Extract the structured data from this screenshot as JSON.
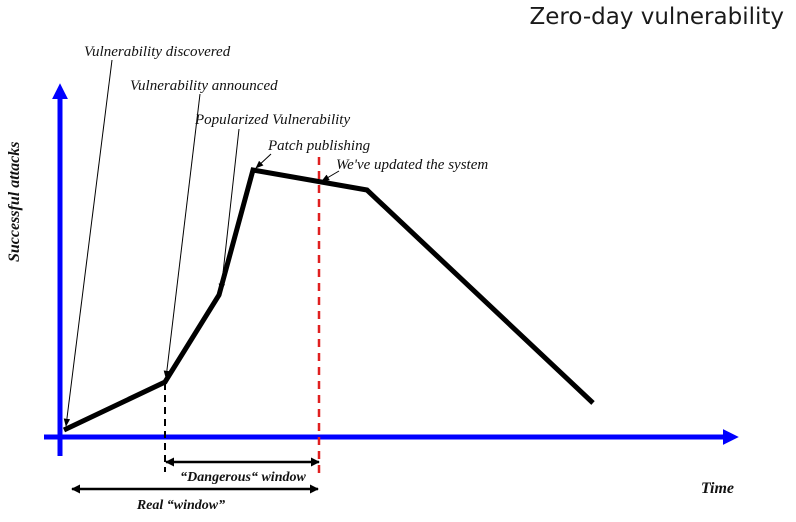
{
  "title": "Zero-day vulnerability",
  "axes": {
    "y_label": "Successful attacks",
    "x_label": "Time",
    "axis_color": "#0000ff"
  },
  "curve_color": "#000000",
  "annotations": [
    {
      "id": "discovered",
      "text": "Vulnerability discovered"
    },
    {
      "id": "announced",
      "text": "Vulnerability announced"
    },
    {
      "id": "popularized",
      "text": "Popularized Vulnerability"
    },
    {
      "id": "patch",
      "text": "Patch publishing"
    },
    {
      "id": "updated",
      "text": "We've updated the system"
    }
  ],
  "windows": {
    "dangerous": {
      "label": "“Dangerous“ window"
    },
    "real": {
      "label": "Real “window”"
    }
  },
  "markers": {
    "announced_line_color": "#000000",
    "updated_line_color": "#e02020"
  }
}
